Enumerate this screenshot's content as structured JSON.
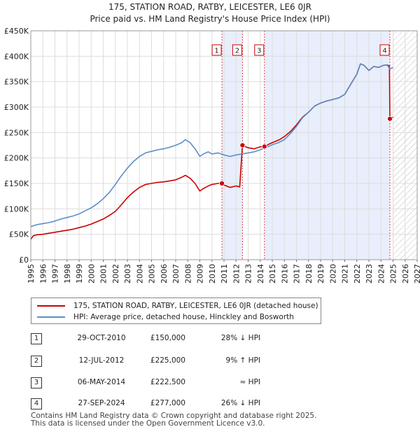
{
  "chart_data": {
    "type": "line",
    "title": "175, STATION ROAD, RATBY, LEICESTER, LE6 0JR",
    "subtitle": "Price paid vs. HM Land Registry's House Price Index (HPI)",
    "ylim": [
      0,
      450000
    ],
    "xlim": [
      1995,
      2027
    ],
    "y_ticks": [
      0,
      50000,
      100000,
      150000,
      200000,
      250000,
      300000,
      350000,
      400000,
      450000
    ],
    "y_tick_labels": [
      "£0",
      "£50K",
      "£100K",
      "£150K",
      "£200K",
      "£250K",
      "£300K",
      "£350K",
      "£400K",
      "£450K"
    ],
    "x_ticks": [
      1995,
      1996,
      1997,
      1998,
      1999,
      2000,
      2001,
      2002,
      2003,
      2004,
      2005,
      2006,
      2007,
      2008,
      2009,
      2010,
      2011,
      2012,
      2013,
      2014,
      2015,
      2016,
      2017,
      2018,
      2019,
      2020,
      2021,
      2022,
      2023,
      2024,
      2025,
      2026,
      2027
    ],
    "x_tick_labels": [
      "1995",
      "1996",
      "1997",
      "1998",
      "1999",
      "2000",
      "2001",
      "2002",
      "2003",
      "2004",
      "2005",
      "2006",
      "2007",
      "2008",
      "2009",
      "2010",
      "2011",
      "2012",
      "2013",
      "2014",
      "2015",
      "2016",
      "2017",
      "2018",
      "2019",
      "2020",
      "2021",
      "2022",
      "2023",
      "2024",
      "2025",
      "2026",
      "2027"
    ],
    "hatch_start": 2025.0,
    "series": [
      {
        "name": "175, STATION ROAD, RATBY, LEICESTER, LE6 0JR (detached house)",
        "color": "#cc0000",
        "x": [
          1995.0,
          1995.2,
          1995.5,
          1996.0,
          1996.5,
          1997.0,
          1997.5,
          1998.0,
          1998.5,
          1999.0,
          1999.5,
          2000.0,
          2000.5,
          2001.0,
          2001.5,
          2002.0,
          2002.5,
          2003.0,
          2003.5,
          2004.0,
          2004.5,
          2005.0,
          2005.5,
          2006.0,
          2006.5,
          2007.0,
          2007.5,
          2007.8,
          2008.2,
          2008.6,
          2009.0,
          2009.3,
          2009.7,
          2010.0,
          2010.5,
          2010.83,
          2011.0,
          2011.5,
          2012.0,
          2012.3,
          2012.53,
          2012.8,
          2013.0,
          2013.5,
          2014.0,
          2014.35,
          2014.8,
          2015.2,
          2015.6,
          2016.0,
          2016.5,
          2017.0,
          2017.5,
          2018.0,
          2018.5,
          2019.0,
          2019.5,
          2020.0,
          2020.5,
          2021.0,
          2021.5,
          2022.0,
          2022.3,
          2022.6,
          2023.0,
          2023.4,
          2023.8,
          2024.2,
          2024.5,
          2024.7,
          2024.74,
          2025.0
        ],
        "y": [
          40000,
          47000,
          49000,
          50000,
          52000,
          54000,
          56000,
          58000,
          60000,
          63000,
          66000,
          70000,
          75000,
          80000,
          87000,
          95000,
          108000,
          122000,
          133000,
          142000,
          148000,
          150000,
          152000,
          153000,
          155000,
          157000,
          162000,
          166000,
          160000,
          150000,
          135000,
          140000,
          145000,
          148000,
          150000,
          150000,
          147000,
          142000,
          145000,
          143000,
          225000,
          222000,
          220000,
          218000,
          222000,
          222500,
          228000,
          232000,
          236000,
          242000,
          252000,
          265000,
          280000,
          290000,
          302000,
          308000,
          312000,
          315000,
          318000,
          325000,
          345000,
          365000,
          385000,
          382000,
          372000,
          380000,
          378000,
          382000,
          383000,
          381000,
          277000,
          280000
        ]
      },
      {
        "name": "HPI: Average price, detached house, Hinckley and Bosworth",
        "color": "#5b8fc7",
        "x": [
          1995.0,
          1995.5,
          1996.0,
          1996.5,
          1997.0,
          1997.5,
          1998.0,
          1998.5,
          1999.0,
          1999.5,
          2000.0,
          2000.5,
          2001.0,
          2001.5,
          2002.0,
          2002.5,
          2003.0,
          2003.5,
          2004.0,
          2004.5,
          2005.0,
          2005.5,
          2006.0,
          2006.5,
          2007.0,
          2007.5,
          2007.8,
          2008.2,
          2008.6,
          2009.0,
          2009.3,
          2009.7,
          2010.0,
          2010.5,
          2011.0,
          2011.5,
          2012.0,
          2012.5,
          2013.0,
          2013.5,
          2014.0,
          2014.5,
          2015.0,
          2015.5,
          2016.0,
          2016.5,
          2017.0,
          2017.5,
          2018.0,
          2018.5,
          2019.0,
          2019.5,
          2020.0,
          2020.5,
          2021.0,
          2021.5,
          2022.0,
          2022.3,
          2022.6,
          2023.0,
          2023.4,
          2023.8,
          2024.2,
          2024.5,
          2024.74,
          2025.0
        ],
        "y": [
          65000,
          69000,
          71000,
          73000,
          76000,
          80000,
          83000,
          86000,
          90000,
          96000,
          102000,
          110000,
          120000,
          132000,
          148000,
          165000,
          180000,
          193000,
          203000,
          210000,
          213000,
          216000,
          218000,
          221000,
          225000,
          230000,
          236000,
          230000,
          218000,
          203000,
          208000,
          212000,
          208000,
          210000,
          206000,
          203000,
          206000,
          208000,
          210000,
          212000,
          216000,
          221000,
          226000,
          230000,
          236000,
          248000,
          262000,
          279000,
          290000,
          302000,
          308000,
          312000,
          315000,
          318000,
          325000,
          345000,
          365000,
          385000,
          382000,
          372000,
          380000,
          378000,
          382000,
          383000,
          375000,
          378000
        ]
      }
    ],
    "sales": [
      {
        "label": "1",
        "x": 2010.83,
        "y": 150000
      },
      {
        "label": "2",
        "x": 2012.53,
        "y": 225000
      },
      {
        "label": "3",
        "x": 2014.35,
        "y": 222500
      },
      {
        "label": "4",
        "x": 2024.74,
        "y": 277000
      }
    ]
  },
  "legend": {
    "property": "175, STATION ROAD, RATBY, LEICESTER, LE6 0JR (detached house)",
    "hpi": "HPI: Average price, detached house, Hinckley and Bosworth"
  },
  "sales_table": [
    {
      "num": "1",
      "date": "29-OCT-2010",
      "price": "£150,000",
      "hpi": "28% ↓ HPI"
    },
    {
      "num": "2",
      "date": "12-JUL-2012",
      "price": "£225,000",
      "hpi": "9% ↑ HPI"
    },
    {
      "num": "3",
      "date": "06-MAY-2014",
      "price": "£222,500",
      "hpi": "≈ HPI"
    },
    {
      "num": "4",
      "date": "27-SEP-2024",
      "price": "£277,000",
      "hpi": "26% ↓ HPI"
    }
  ],
  "footer": {
    "line1": "Contains HM Land Registry data © Crown copyright and database right 2025.",
    "line2": "This data is licensed under the Open Government Licence v3.0."
  }
}
